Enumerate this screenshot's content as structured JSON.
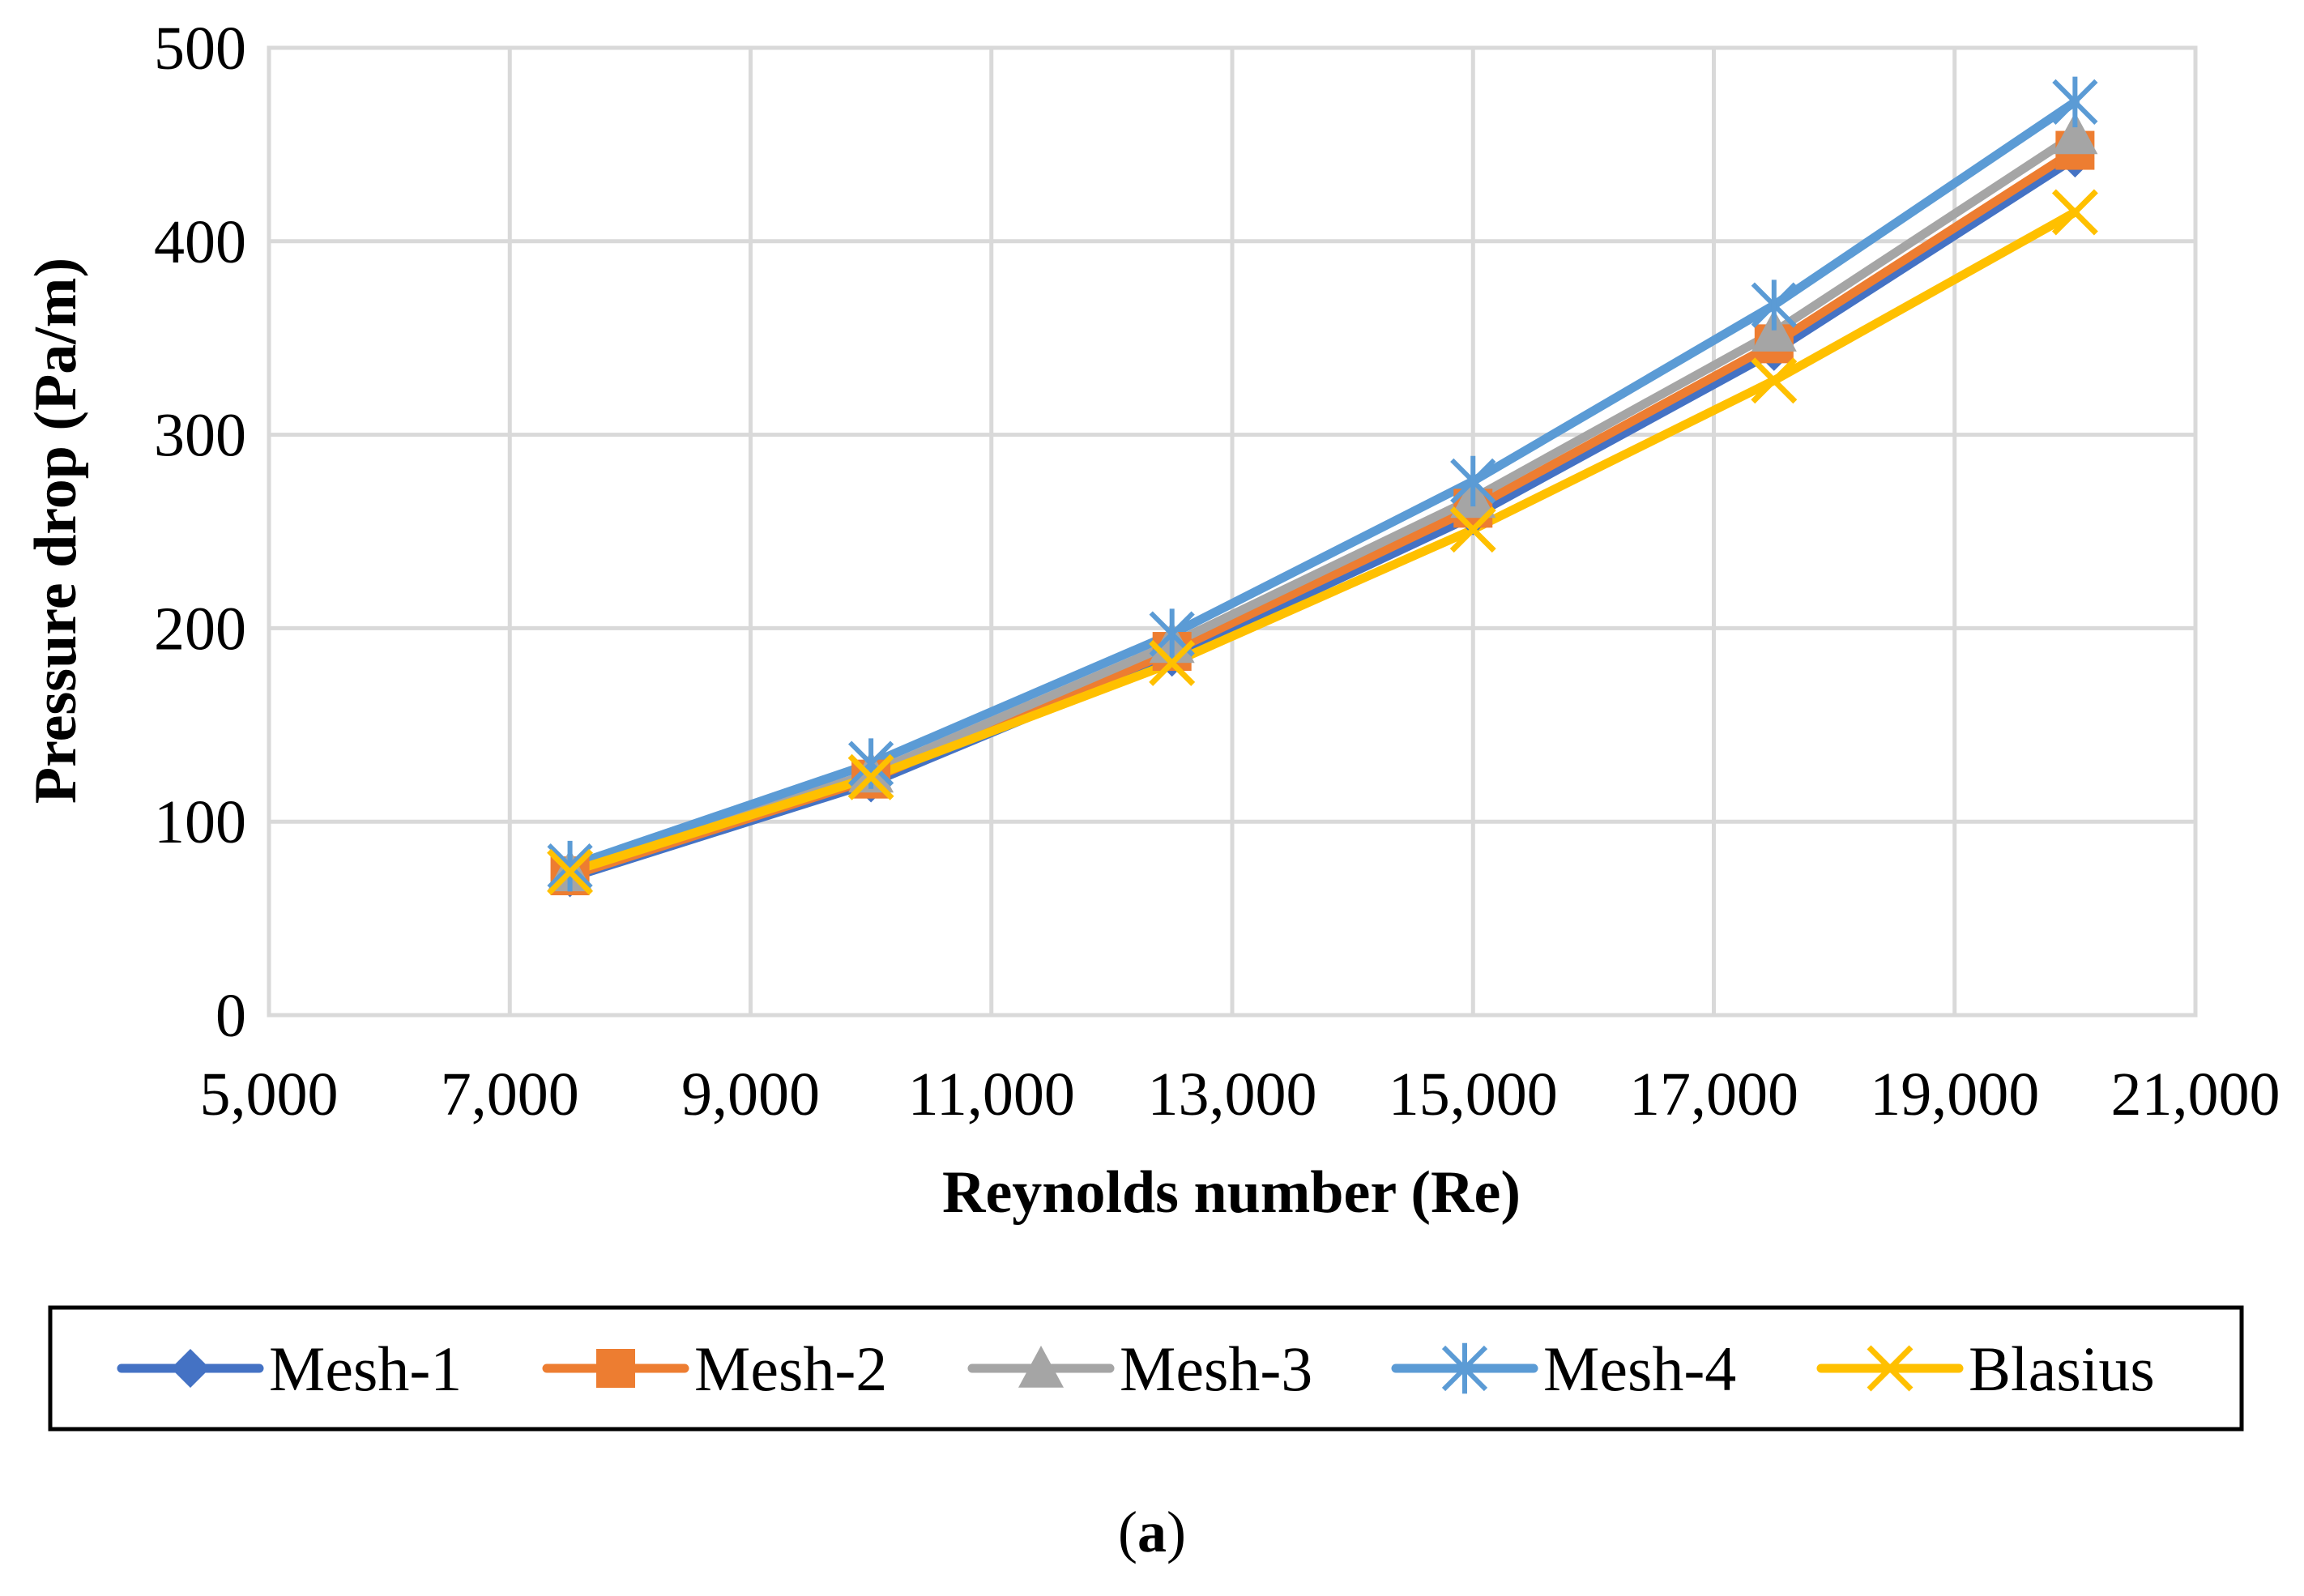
{
  "caption_text": "(a)",
  "caption_letter": "a",
  "caption_open": "(",
  "caption_close": ")",
  "chart_data": {
    "type": "line",
    "title": "",
    "xlabel": "Reynolds number (Re)",
    "ylabel": "Pressure drop (Pa/m)",
    "xlim": [
      5000,
      21000
    ],
    "ylim": [
      0,
      500
    ],
    "xticks": [
      5000,
      7000,
      9000,
      11000,
      13000,
      15000,
      17000,
      19000,
      21000
    ],
    "xtick_labels": [
      "5,000",
      "7,000",
      "9,000",
      "11,000",
      "13,000",
      "15,000",
      "17,000",
      "19,000",
      "21,000"
    ],
    "yticks": [
      0,
      100,
      200,
      300,
      400,
      500
    ],
    "ytick_labels": [
      "0",
      "100",
      "200",
      "300",
      "400",
      "500"
    ],
    "grid": true,
    "legend_position": "bottom",
    "x": [
      7500,
      10000,
      12500,
      15000,
      17500,
      20000
    ],
    "series": [
      {
        "name": "Mesh-1",
        "color": "#4472c4",
        "marker": "diamond",
        "values": [
          71,
          120,
          185,
          258,
          343,
          443
        ]
      },
      {
        "name": "Mesh-2",
        "color": "#ed7d31",
        "marker": "square",
        "values": [
          72,
          122,
          188,
          262,
          347,
          447
        ]
      },
      {
        "name": "Mesh-3",
        "color": "#a5a5a5",
        "marker": "triangle",
        "values": [
          74,
          125,
          192,
          267,
          353,
          455
        ]
      },
      {
        "name": "Mesh-4",
        "color": "#5b9bd5",
        "marker": "asterisk",
        "values": [
          77,
          130,
          197,
          276,
          367,
          472
        ]
      },
      {
        "name": "Blasius",
        "color": "#ffc000",
        "marker": "cross",
        "values": [
          74,
          123,
          182,
          251,
          328,
          415
        ]
      }
    ]
  }
}
